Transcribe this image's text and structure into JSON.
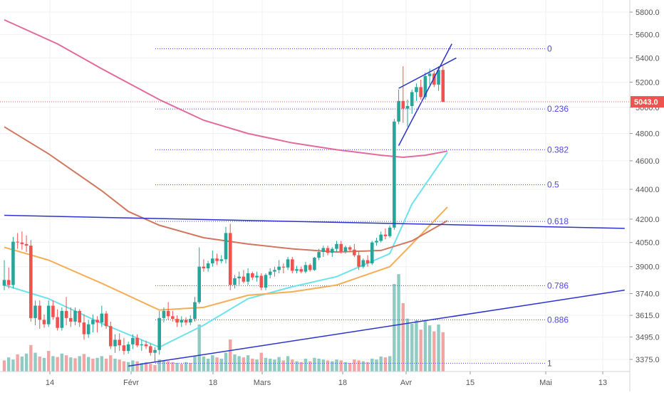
{
  "colors": {
    "background": "#ffffff",
    "grid": "#eef0f3",
    "up": "#26a69a",
    "down": "#ef5350",
    "volume_up": "#8fcbc3",
    "volume_down": "#f2a5a3",
    "ma_pink": "#e26b9b",
    "ma_brown": "#d2775f",
    "ma_orange": "#f6ad55",
    "ma_cyan": "#6be3ec",
    "fib": "#4f46e5",
    "trend": "#2b33cc",
    "price_line": "#ef5350"
  },
  "chart_data": {
    "type": "candlestick",
    "y_axis": {
      "ticks": [
        "5800.0",
        "5600.0",
        "5400.0",
        "5200.0",
        "5000.0",
        "4800.0",
        "4600.0",
        "4400.0",
        "4200.0",
        "4050.0",
        "3900.0",
        "3740.0",
        "3615.0",
        "3495.0",
        "3375.0"
      ],
      "scale": "log"
    },
    "x_axis": {
      "ticks": [
        "14",
        "Févr",
        "18",
        "Mars",
        "18",
        "Avr",
        "15",
        "Mai",
        "13"
      ]
    },
    "current_price": "5043.0",
    "fibonacci": {
      "levels": [
        {
          "label": "0",
          "price": 5478
        },
        {
          "label": "0.236",
          "price": 4987
        },
        {
          "label": "0.382",
          "price": 4680
        },
        {
          "label": "0.5",
          "price": 4431
        },
        {
          "label": "0.618",
          "price": 4185
        },
        {
          "label": "0.786",
          "price": 3786
        },
        {
          "label": "0.886",
          "price": 3590
        },
        {
          "label": "1",
          "price": 3355
        }
      ]
    },
    "candles": [
      [
        3786,
        3940,
        3760,
        3820
      ],
      [
        3820,
        3895,
        3770,
        3790
      ],
      [
        3790,
        4085,
        3770,
        4055
      ],
      [
        4055,
        4110,
        4010,
        4050
      ],
      [
        4050,
        4120,
        4005,
        4040
      ],
      [
        4040,
        4095,
        3990,
        4030
      ],
      [
        4030,
        4065,
        3580,
        3600
      ],
      [
        3600,
        3700,
        3560,
        3670
      ],
      [
        3670,
        3700,
        3540,
        3590
      ],
      [
        3590,
        3620,
        3545,
        3565
      ],
      [
        3565,
        3700,
        3550,
        3670
      ],
      [
        3670,
        3700,
        3590,
        3605
      ],
      [
        3605,
        3650,
        3530,
        3545
      ],
      [
        3545,
        3660,
        3530,
        3640
      ],
      [
        3640,
        3720,
        3560,
        3600
      ],
      [
        3600,
        3660,
        3550,
        3580
      ],
      [
        3580,
        3660,
        3560,
        3640
      ],
      [
        3640,
        3650,
        3550,
        3575
      ],
      [
        3575,
        3620,
        3480,
        3510
      ],
      [
        3510,
        3590,
        3490,
        3565
      ],
      [
        3565,
        3620,
        3520,
        3590
      ],
      [
        3590,
        3610,
        3520,
        3575
      ],
      [
        3575,
        3670,
        3550,
        3625
      ],
      [
        3625,
        3640,
        3540,
        3555
      ],
      [
        3555,
        3580,
        3430,
        3445
      ],
      [
        3445,
        3510,
        3410,
        3480
      ],
      [
        3480,
        3515,
        3420,
        3450
      ],
      [
        3450,
        3490,
        3400,
        3420
      ],
      [
        3420,
        3470,
        3405,
        3455
      ],
      [
        3455,
        3510,
        3430,
        3490
      ],
      [
        3490,
        3510,
        3440,
        3450
      ],
      [
        3450,
        3480,
        3420,
        3455
      ],
      [
        3455,
        3475,
        3430,
        3445
      ],
      [
        3445,
        3460,
        3395,
        3410
      ],
      [
        3410,
        3440,
        3360,
        3425
      ],
      [
        3425,
        3640,
        3400,
        3600
      ],
      [
        3600,
        3660,
        3575,
        3640
      ],
      [
        3640,
        3690,
        3590,
        3610
      ],
      [
        3610,
        3640,
        3580,
        3595
      ],
      [
        3595,
        3615,
        3550,
        3575
      ],
      [
        3575,
        3610,
        3550,
        3590
      ],
      [
        3590,
        3605,
        3560,
        3575
      ],
      [
        3575,
        3615,
        3560,
        3595
      ],
      [
        3595,
        3720,
        3580,
        3690
      ],
      [
        3690,
        4020,
        3680,
        3900
      ],
      [
        3900,
        3945,
        3870,
        3890
      ],
      [
        3890,
        3935,
        3870,
        3920
      ],
      [
        3920,
        4000,
        3900,
        3950
      ],
      [
        3950,
        3980,
        3910,
        3935
      ],
      [
        3935,
        3970,
        3920,
        3945
      ],
      [
        3945,
        4150,
        3920,
        4110
      ],
      [
        4110,
        4170,
        3760,
        3790
      ],
      [
        3790,
        3850,
        3770,
        3830
      ],
      [
        3830,
        3870,
        3790,
        3840
      ],
      [
        3840,
        3880,
        3800,
        3810
      ],
      [
        3810,
        3890,
        3790,
        3860
      ],
      [
        3860,
        3870,
        3820,
        3835
      ],
      [
        3835,
        3870,
        3810,
        3845
      ],
      [
        3845,
        3860,
        3760,
        3775
      ],
      [
        3775,
        3860,
        3760,
        3850
      ],
      [
        3850,
        3890,
        3830,
        3870
      ],
      [
        3870,
        3900,
        3840,
        3880
      ],
      [
        3880,
        3940,
        3860,
        3900
      ],
      [
        3900,
        3920,
        3860,
        3895
      ],
      [
        3895,
        3960,
        3880,
        3945
      ],
      [
        3945,
        3960,
        3860,
        3875
      ],
      [
        3875,
        3905,
        3860,
        3885
      ],
      [
        3885,
        3900,
        3860,
        3870
      ],
      [
        3870,
        3930,
        3860,
        3910
      ],
      [
        3910,
        3920,
        3870,
        3880
      ],
      [
        3880,
        3960,
        3875,
        3955
      ],
      [
        3955,
        4010,
        3940,
        3990
      ],
      [
        3990,
        4030,
        3960,
        4015
      ],
      [
        4015,
        4030,
        3970,
        3985
      ],
      [
        3985,
        4020,
        3960,
        4010
      ],
      [
        4010,
        4060,
        3990,
        4040
      ],
      [
        4040,
        4060,
        3980,
        3995
      ],
      [
        3995,
        4030,
        3980,
        4020
      ],
      [
        4020,
        4030,
        3990,
        4005
      ],
      [
        4005,
        4040,
        3960,
        3970
      ],
      [
        3970,
        3995,
        3880,
        3900
      ],
      [
        3900,
        3950,
        3890,
        3940
      ],
      [
        3940,
        3970,
        3900,
        3920
      ],
      [
        3920,
        4060,
        3910,
        4050
      ],
      [
        4050,
        4080,
        4030,
        4060
      ],
      [
        4060,
        4120,
        4050,
        4100
      ],
      [
        4100,
        4140,
        4070,
        4090
      ],
      [
        4090,
        4160,
        4080,
        4145
      ],
      [
        4145,
        4910,
        4130,
        4890
      ],
      [
        4890,
        5140,
        4870,
        5050
      ],
      [
        5050,
        5330,
        4880,
        4990
      ],
      [
        4990,
        5060,
        4850,
        5010
      ],
      [
        5010,
        5140,
        4950,
        5120
      ],
      [
        5120,
        5190,
        5050,
        5160
      ],
      [
        5160,
        5220,
        5060,
        5080
      ],
      [
        5080,
        5280,
        5060,
        5250
      ],
      [
        5250,
        5310,
        5180,
        5270
      ],
      [
        5270,
        5290,
        5160,
        5180
      ],
      [
        5180,
        5330,
        5130,
        5300
      ],
      [
        5300,
        5330,
        5040,
        5043
      ]
    ],
    "volumes": [
      [
        26,
        0
      ],
      [
        33,
        1
      ],
      [
        28,
        1
      ],
      [
        40,
        0
      ],
      [
        35,
        1
      ],
      [
        42,
        1
      ],
      [
        62,
        0
      ],
      [
        44,
        1
      ],
      [
        35,
        0
      ],
      [
        32,
        1
      ],
      [
        48,
        0
      ],
      [
        36,
        1
      ],
      [
        34,
        0
      ],
      [
        42,
        1
      ],
      [
        38,
        0
      ],
      [
        33,
        1
      ],
      [
        31,
        0
      ],
      [
        36,
        1
      ],
      [
        41,
        0
      ],
      [
        34,
        1
      ],
      [
        30,
        0
      ],
      [
        32,
        1
      ],
      [
        36,
        1
      ],
      [
        30,
        0
      ],
      [
        38,
        0
      ],
      [
        30,
        1
      ],
      [
        28,
        0
      ],
      [
        24,
        0
      ],
      [
        22,
        1
      ],
      [
        26,
        1
      ],
      [
        24,
        0
      ],
      [
        20,
        1
      ],
      [
        22,
        0
      ],
      [
        18,
        0
      ],
      [
        15,
        0
      ],
      [
        28,
        1
      ],
      [
        26,
        1
      ],
      [
        24,
        0
      ],
      [
        22,
        0
      ],
      [
        20,
        1
      ],
      [
        18,
        0
      ],
      [
        22,
        1
      ],
      [
        20,
        0
      ],
      [
        36,
        1
      ],
      [
        110,
        1
      ],
      [
        35,
        1
      ],
      [
        30,
        1
      ],
      [
        38,
        1
      ],
      [
        33,
        0
      ],
      [
        30,
        1
      ],
      [
        44,
        1
      ],
      [
        75,
        0
      ],
      [
        40,
        1
      ],
      [
        36,
        1
      ],
      [
        33,
        0
      ],
      [
        38,
        1
      ],
      [
        30,
        0
      ],
      [
        28,
        1
      ],
      [
        44,
        0
      ],
      [
        32,
        1
      ],
      [
        30,
        1
      ],
      [
        28,
        1
      ],
      [
        34,
        1
      ],
      [
        26,
        0
      ],
      [
        36,
        1
      ],
      [
        28,
        0
      ],
      [
        24,
        1
      ],
      [
        22,
        0
      ],
      [
        30,
        1
      ],
      [
        24,
        0
      ],
      [
        32,
        1
      ],
      [
        30,
        1
      ],
      [
        28,
        1
      ],
      [
        26,
        0
      ],
      [
        24,
        1
      ],
      [
        28,
        1
      ],
      [
        26,
        0
      ],
      [
        22,
        1
      ],
      [
        20,
        0
      ],
      [
        28,
        0
      ],
      [
        26,
        0
      ],
      [
        24,
        1
      ],
      [
        22,
        0
      ],
      [
        30,
        1
      ],
      [
        28,
        1
      ],
      [
        35,
        1
      ],
      [
        33,
        0
      ],
      [
        36,
        1
      ],
      [
        205,
        1
      ],
      [
        228,
        1
      ],
      [
        160,
        0
      ],
      [
        124,
        1
      ],
      [
        112,
        1
      ],
      [
        120,
        1
      ],
      [
        98,
        0
      ],
      [
        118,
        1
      ],
      [
        108,
        1
      ],
      [
        94,
        0
      ],
      [
        110,
        1
      ],
      [
        92,
        0
      ]
    ],
    "moving_averages": [
      {
        "color_key": "ma_cyan",
        "values": [
          [
            0,
            3790
          ],
          [
            10,
            3710
          ],
          [
            22,
            3570
          ],
          [
            35,
            3440
          ],
          [
            45,
            3560
          ],
          [
            55,
            3710
          ],
          [
            65,
            3780
          ],
          [
            75,
            3840
          ],
          [
            87,
            3980
          ],
          [
            92,
            4300
          ],
          [
            100,
            4660
          ]
        ]
      },
      {
        "color_key": "ma_orange",
        "values": [
          [
            0,
            4020
          ],
          [
            10,
            3940
          ],
          [
            22,
            3800
          ],
          [
            35,
            3645
          ],
          [
            45,
            3660
          ],
          [
            55,
            3730
          ],
          [
            65,
            3750
          ],
          [
            75,
            3790
          ],
          [
            87,
            3900
          ],
          [
            92,
            4040
          ],
          [
            100,
            4280
          ]
        ]
      },
      {
        "color_key": "ma_brown",
        "values": [
          [
            0,
            4850
          ],
          [
            10,
            4650
          ],
          [
            22,
            4390
          ],
          [
            28,
            4250
          ],
          [
            35,
            4160
          ],
          [
            45,
            4080
          ],
          [
            55,
            4040
          ],
          [
            65,
            4010
          ],
          [
            75,
            3990
          ],
          [
            85,
            4000
          ],
          [
            92,
            4060
          ],
          [
            100,
            4190
          ]
        ]
      },
      {
        "color_key": "ma_pink",
        "values": [
          [
            0,
            5730
          ],
          [
            12,
            5520
          ],
          [
            22,
            5310
          ],
          [
            35,
            5060
          ],
          [
            45,
            4900
          ],
          [
            55,
            4800
          ],
          [
            65,
            4730
          ],
          [
            75,
            4680
          ],
          [
            85,
            4640
          ],
          [
            90,
            4625
          ],
          [
            95,
            4640
          ],
          [
            100,
            4670
          ]
        ]
      }
    ],
    "trend_lines": [
      {
        "points": [
          [
            0,
            4225
          ],
          [
            140,
            4140
          ]
        ]
      },
      {
        "points": [
          [
            28,
            3340
          ],
          [
            140,
            3760
          ]
        ]
      },
      {
        "points": [
          [
            89,
            4710
          ],
          [
            101,
            5520
          ]
        ]
      },
      {
        "points": [
          [
            89,
            5150
          ],
          [
            102,
            5400
          ]
        ]
      }
    ]
  }
}
